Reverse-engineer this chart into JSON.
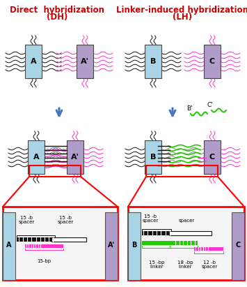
{
  "title_color": "#cc0000",
  "nanorod_light_blue": "#a8d4e6",
  "nanorod_purple": "#b09cc8",
  "dna_black": "#111111",
  "dna_pink": "#ff33cc",
  "dna_green": "#22cc00",
  "arrow_color": "#4477bb",
  "label_A": "A",
  "label_Ap": "A'",
  "label_B": "B",
  "label_C": "C",
  "Bp": "B'",
  "Cp": "C'"
}
